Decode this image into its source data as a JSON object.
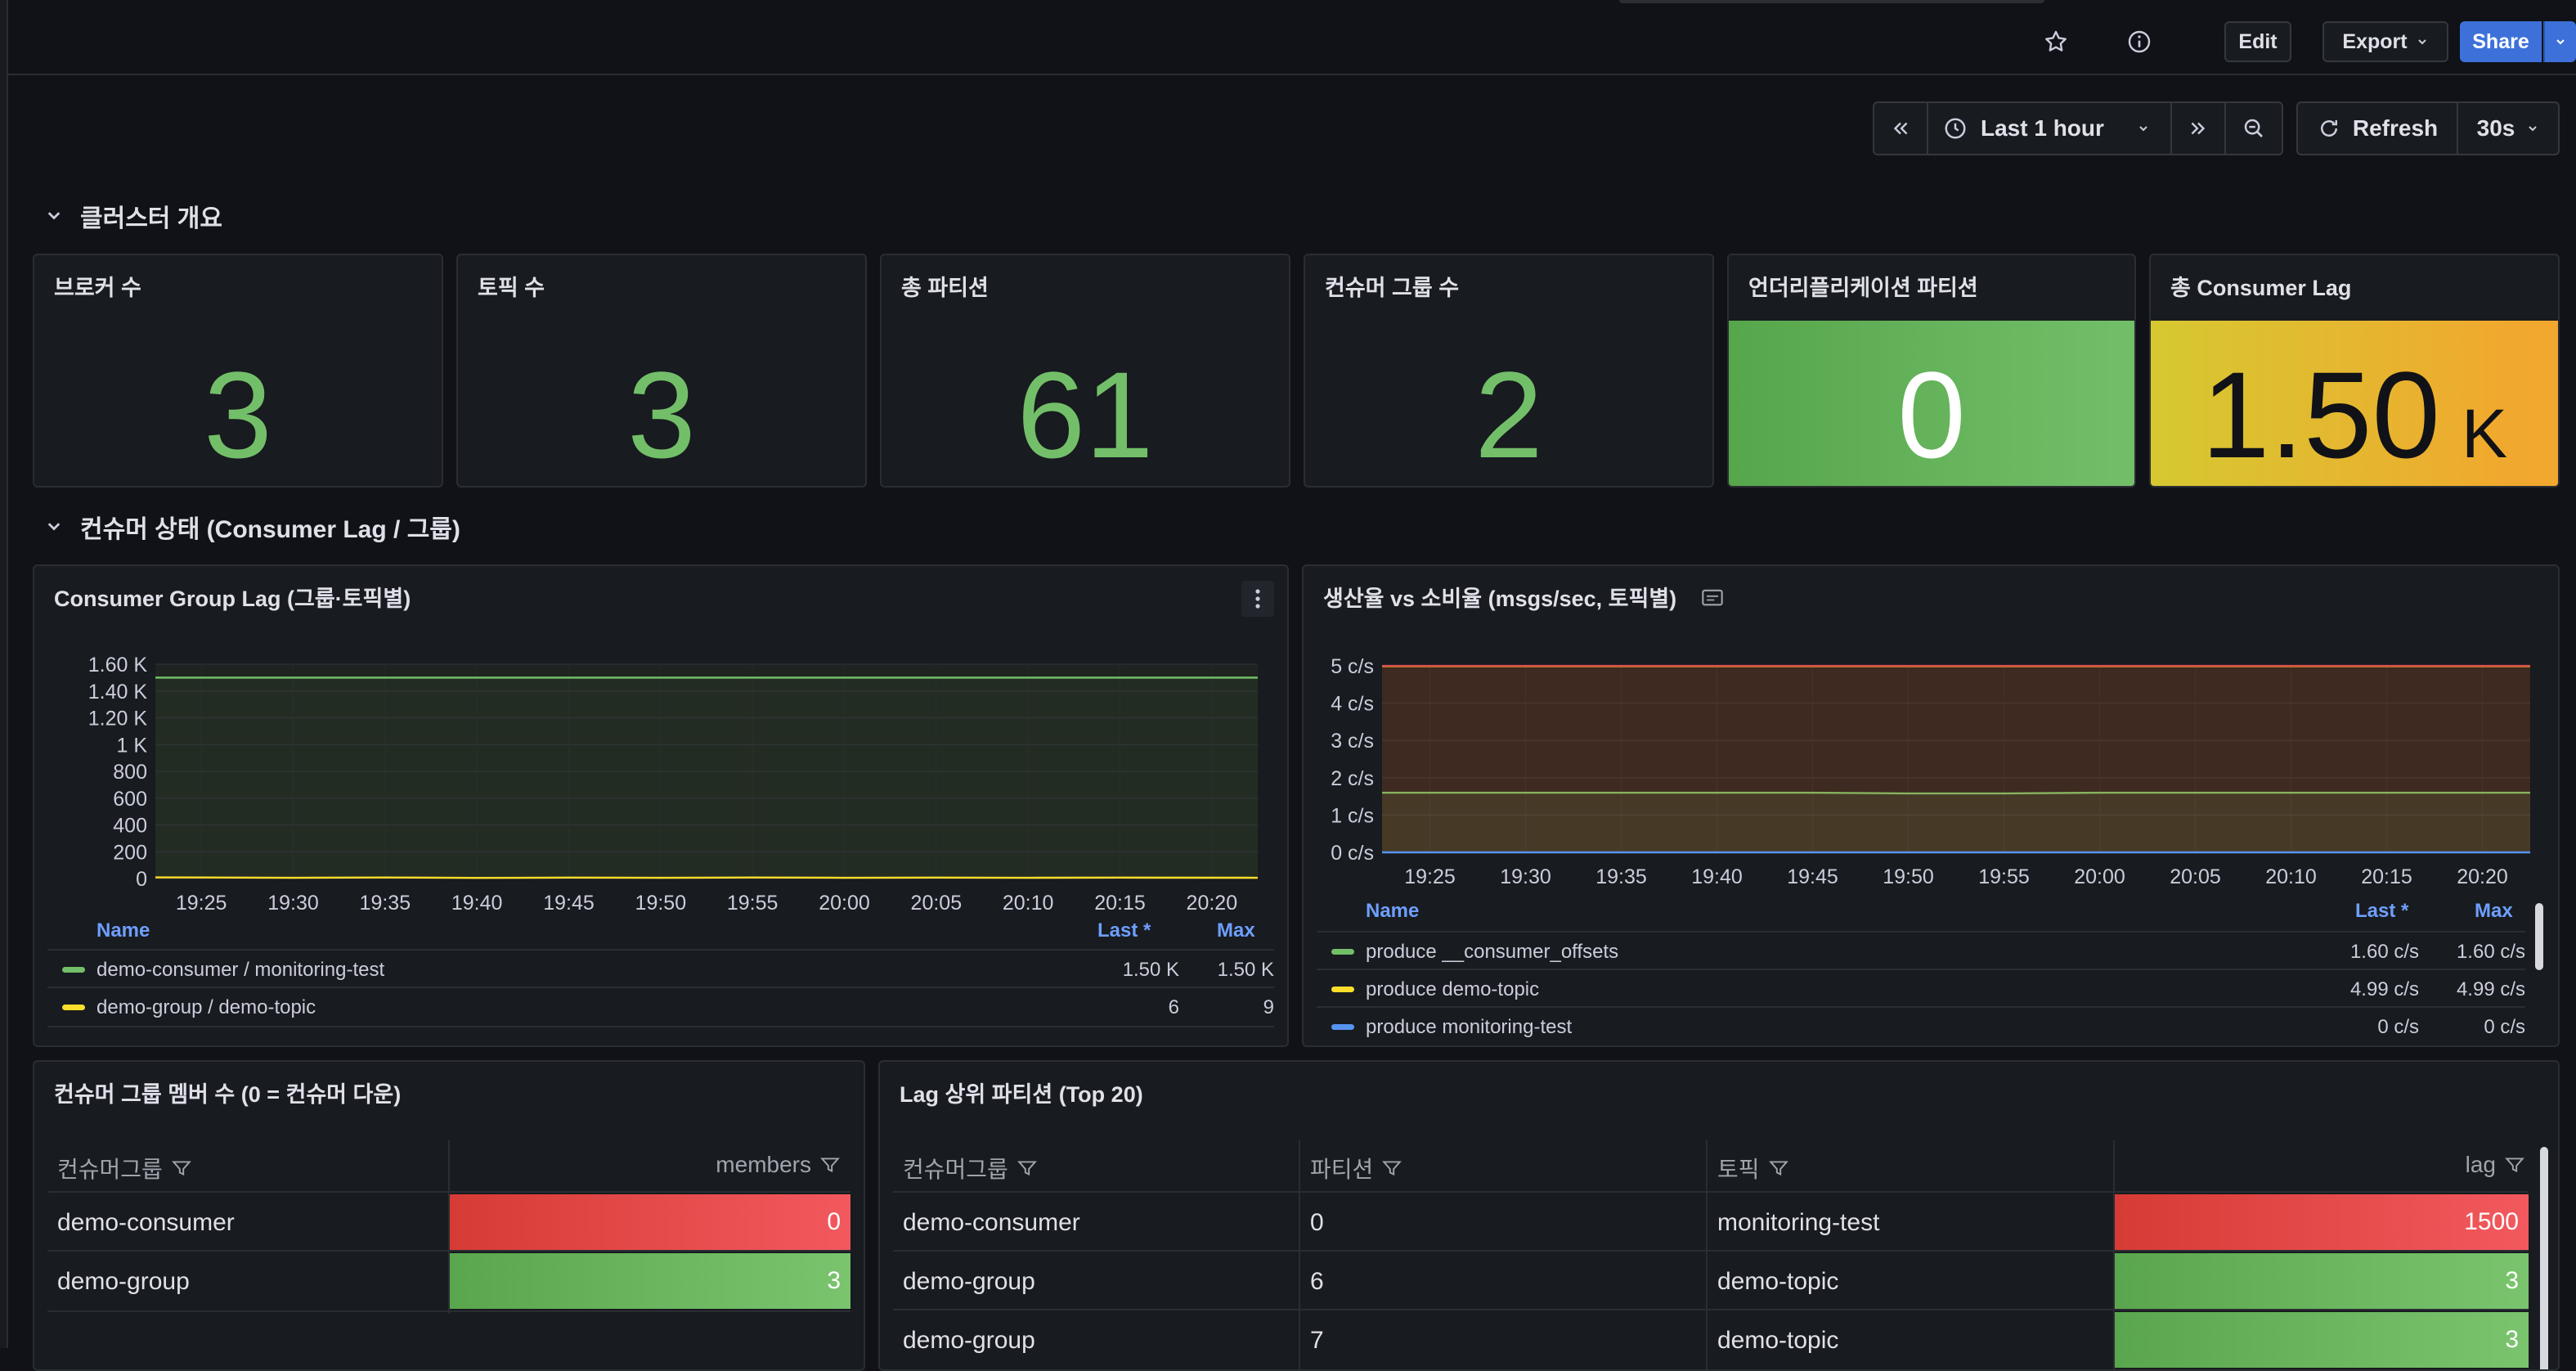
{
  "toolbar": {
    "edit_label": "Edit",
    "export_label": "Export",
    "share_label": "Share"
  },
  "time_controls": {
    "range_label": "Last 1 hour",
    "refresh_label": "Refresh",
    "interval_label": "30s"
  },
  "sections": {
    "overview_title": "클러스터 개요",
    "consumer_title": "컨슈머 상태 (Consumer Lag / 그룹)"
  },
  "stats": [
    {
      "title": "브로커 수",
      "value": "3"
    },
    {
      "title": "토픽 수",
      "value": "3"
    },
    {
      "title": "총 파티션",
      "value": "61"
    },
    {
      "title": "컨슈머 그룹 수",
      "value": "2"
    },
    {
      "title": "언더리플리케이션 파티션",
      "value": "0"
    },
    {
      "title": "총 Consumer Lag",
      "value": "1.50",
      "unit": "K"
    }
  ],
  "lag_panel": {
    "title": "Consumer Group Lag (그룹·토픽별)",
    "legend_headers": {
      "name": "Name",
      "last": "Last *",
      "max": "Max"
    },
    "legend": [
      {
        "name": "demo-consumer / monitoring-test",
        "last": "1.50 K",
        "max": "1.50 K",
        "color": "#73bf69"
      },
      {
        "name": "demo-group / demo-topic",
        "last": "6",
        "max": "9",
        "color": "#fade2a"
      }
    ]
  },
  "rate_panel": {
    "title": "생산율 vs 소비율 (msgs/sec, 토픽별)",
    "legend_headers": {
      "name": "Name",
      "last": "Last *",
      "max": "Max"
    },
    "legend": [
      {
        "name": "produce __consumer_offsets",
        "last": "1.60 c/s",
        "max": "1.60 c/s",
        "color": "#73bf69"
      },
      {
        "name": "produce demo-topic",
        "last": "4.99 c/s",
        "max": "4.99 c/s",
        "color": "#fade2a"
      },
      {
        "name": "produce monitoring-test",
        "last": "0 c/s",
        "max": "0 c/s",
        "color": "#5794f2"
      }
    ]
  },
  "chart_data": [
    {
      "type": "line",
      "title": "Consumer Group Lag (그룹·토픽별)",
      "x_ticks": [
        "19:25",
        "19:30",
        "19:35",
        "19:40",
        "19:45",
        "19:50",
        "19:55",
        "20:00",
        "20:05",
        "20:10",
        "20:15",
        "20:20"
      ],
      "y_ticks": [
        "0",
        "200",
        "400",
        "600",
        "800",
        "1 K",
        "1.20 K",
        "1.40 K",
        "1.60 K"
      ],
      "ylim": [
        0,
        1600
      ],
      "series": [
        {
          "name": "demo-consumer / monitoring-test",
          "values": [
            1500,
            1500,
            1500,
            1500,
            1500,
            1500,
            1500,
            1500,
            1500,
            1500,
            1500,
            1500
          ]
        },
        {
          "name": "demo-group / demo-topic",
          "values": [
            9,
            6,
            8,
            5,
            7,
            6,
            8,
            6,
            7,
            6,
            7,
            6
          ]
        }
      ]
    },
    {
      "type": "line",
      "title": "생산율 vs 소비율 (msgs/sec, 토픽별)",
      "x_ticks": [
        "19:25",
        "19:30",
        "19:35",
        "19:40",
        "19:45",
        "19:50",
        "19:55",
        "20:00",
        "20:05",
        "20:10",
        "20:15",
        "20:20"
      ],
      "y_ticks": [
        "0 c/s",
        "1 c/s",
        "2 c/s",
        "3 c/s",
        "4 c/s",
        "5 c/s"
      ],
      "ylim": [
        0,
        5
      ],
      "series": [
        {
          "name": "produce __consumer_offsets",
          "values": [
            1.6,
            1.6,
            1.6,
            1.6,
            1.6,
            1.58,
            1.58,
            1.6,
            1.6,
            1.6,
            1.6,
            1.6
          ]
        },
        {
          "name": "produce demo-topic",
          "values": [
            4.99,
            4.99,
            4.99,
            4.99,
            4.99,
            4.99,
            4.99,
            4.99,
            4.99,
            4.99,
            4.99,
            4.99
          ]
        },
        {
          "name": "produce monitoring-test",
          "values": [
            0,
            0,
            0,
            0,
            0,
            0,
            0,
            0,
            0,
            0,
            0,
            0
          ]
        }
      ]
    }
  ],
  "members_panel": {
    "title": "컨슈머 그룹 멤버 수 (0 = 컨슈머 다운)",
    "headers": [
      "컨슈머그룹",
      "members"
    ],
    "rows": [
      {
        "group": "demo-consumer",
        "members": "0"
      },
      {
        "group": "demo-group",
        "members": "3"
      }
    ]
  },
  "top_panel": {
    "title": "Lag 상위 파티션 (Top 20)",
    "headers": [
      "컨슈머그룹",
      "파티션",
      "토픽",
      "lag"
    ],
    "rows": [
      {
        "group": "demo-consumer",
        "partition": "0",
        "topic": "monitoring-test",
        "lag": "1500"
      },
      {
        "group": "demo-group",
        "partition": "6",
        "topic": "demo-topic",
        "lag": "3"
      },
      {
        "group": "demo-group",
        "partition": "7",
        "topic": "demo-topic",
        "lag": "3"
      }
    ]
  }
}
